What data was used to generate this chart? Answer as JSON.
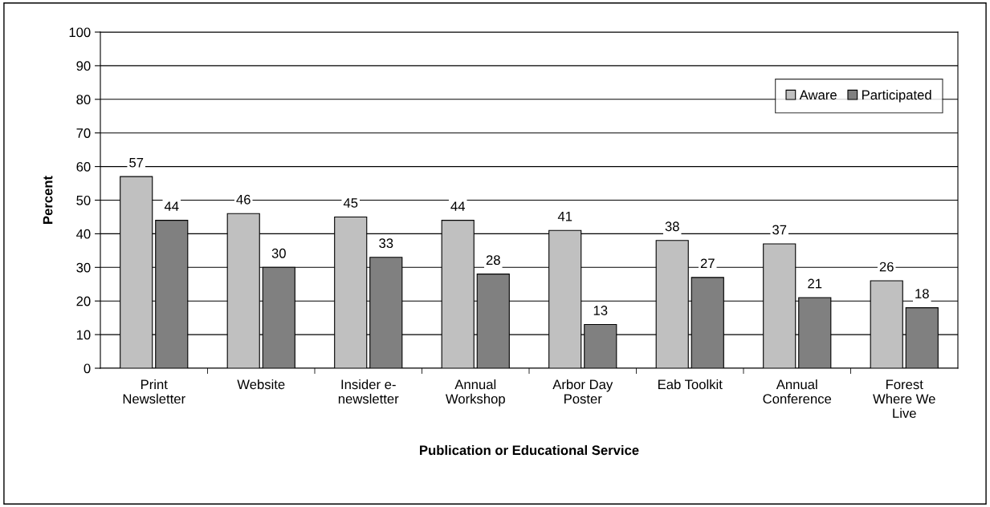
{
  "chart_data": {
    "type": "bar",
    "xlabel": "Publication or Educational Service",
    "ylabel": "Percent",
    "categories": [
      "Print\nNewsletter",
      "Website",
      "Insider e-\nnewsletter",
      "Annual\nWorkshop",
      "Arbor Day\nPoster",
      "Eab Toolkit",
      "Annual\nConference",
      "Forest\nWhere We\nLive"
    ],
    "series": [
      {
        "name": "Aware",
        "color": "#c0c0c0",
        "values": [
          57,
          46,
          45,
          44,
          41,
          38,
          37,
          26
        ]
      },
      {
        "name": "Participated",
        "color": "#808080",
        "values": [
          44,
          30,
          33,
          28,
          13,
          27,
          21,
          18
        ]
      }
    ],
    "ylim": [
      0,
      100
    ],
    "yticks": [
      0,
      10,
      20,
      30,
      40,
      50,
      60,
      70,
      80,
      90,
      100
    ],
    "grid": "y",
    "legend": "top right",
    "data_labels": true
  }
}
